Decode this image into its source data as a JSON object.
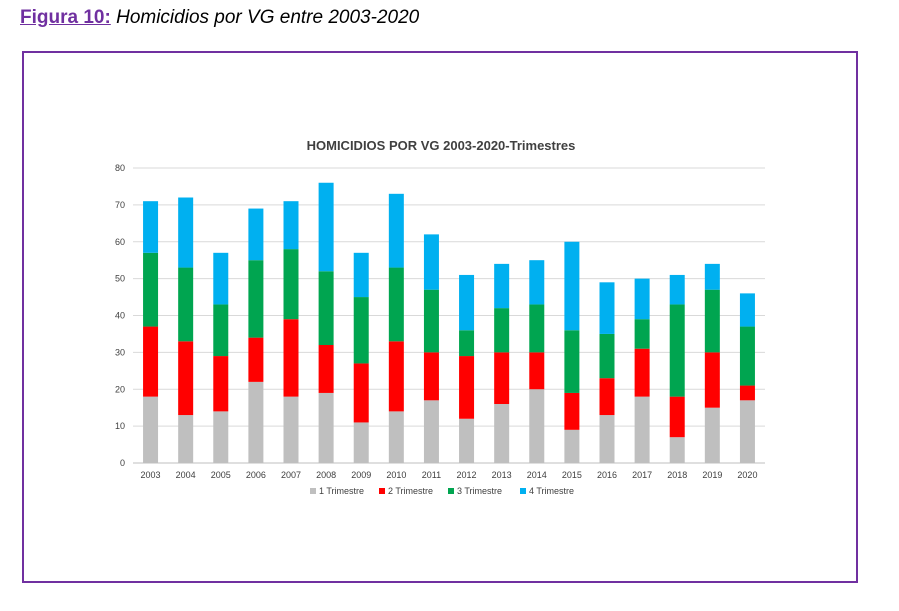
{
  "caption": {
    "label": "Figura 10:",
    "text": "Homicidios por VG entre 2003-2020"
  },
  "chart_data": {
    "type": "bar",
    "stacked": true,
    "title": "HOMICIDIOS POR VG 2003-2020-Trimestres",
    "xlabel": "",
    "ylabel": "",
    "ylim": [
      0,
      80
    ],
    "yticks": [
      0,
      10,
      20,
      30,
      40,
      50,
      60,
      70,
      80
    ],
    "grid": true,
    "legend_position": "bottom",
    "categories": [
      "2003",
      "2004",
      "2005",
      "2006",
      "2007",
      "2008",
      "2009",
      "2010",
      "2011",
      "2012",
      "2013",
      "2014",
      "2015",
      "2016",
      "2017",
      "2018",
      "2019",
      "2020"
    ],
    "series": [
      {
        "name": "1 Trimestre",
        "color": "#bfbfbf",
        "values": [
          18,
          13,
          14,
          22,
          18,
          19,
          11,
          14,
          17,
          12,
          16,
          20,
          9,
          13,
          18,
          7,
          15,
          17
        ]
      },
      {
        "name": "2 Trimestre",
        "color": "#ff0000",
        "values": [
          19,
          20,
          15,
          12,
          21,
          13,
          16,
          19,
          13,
          17,
          14,
          10,
          10,
          10,
          13,
          11,
          15,
          4
        ]
      },
      {
        "name": "3 Trimestre",
        "color": "#00a550",
        "values": [
          20,
          20,
          14,
          21,
          19,
          20,
          18,
          20,
          17,
          7,
          12,
          13,
          17,
          12,
          8,
          25,
          17,
          16
        ]
      },
      {
        "name": "4 Trimestre",
        "color": "#00b0f0",
        "values": [
          14,
          19,
          14,
          14,
          13,
          24,
          12,
          20,
          15,
          15,
          12,
          12,
          24,
          14,
          11,
          8,
          7,
          9
        ]
      }
    ]
  }
}
